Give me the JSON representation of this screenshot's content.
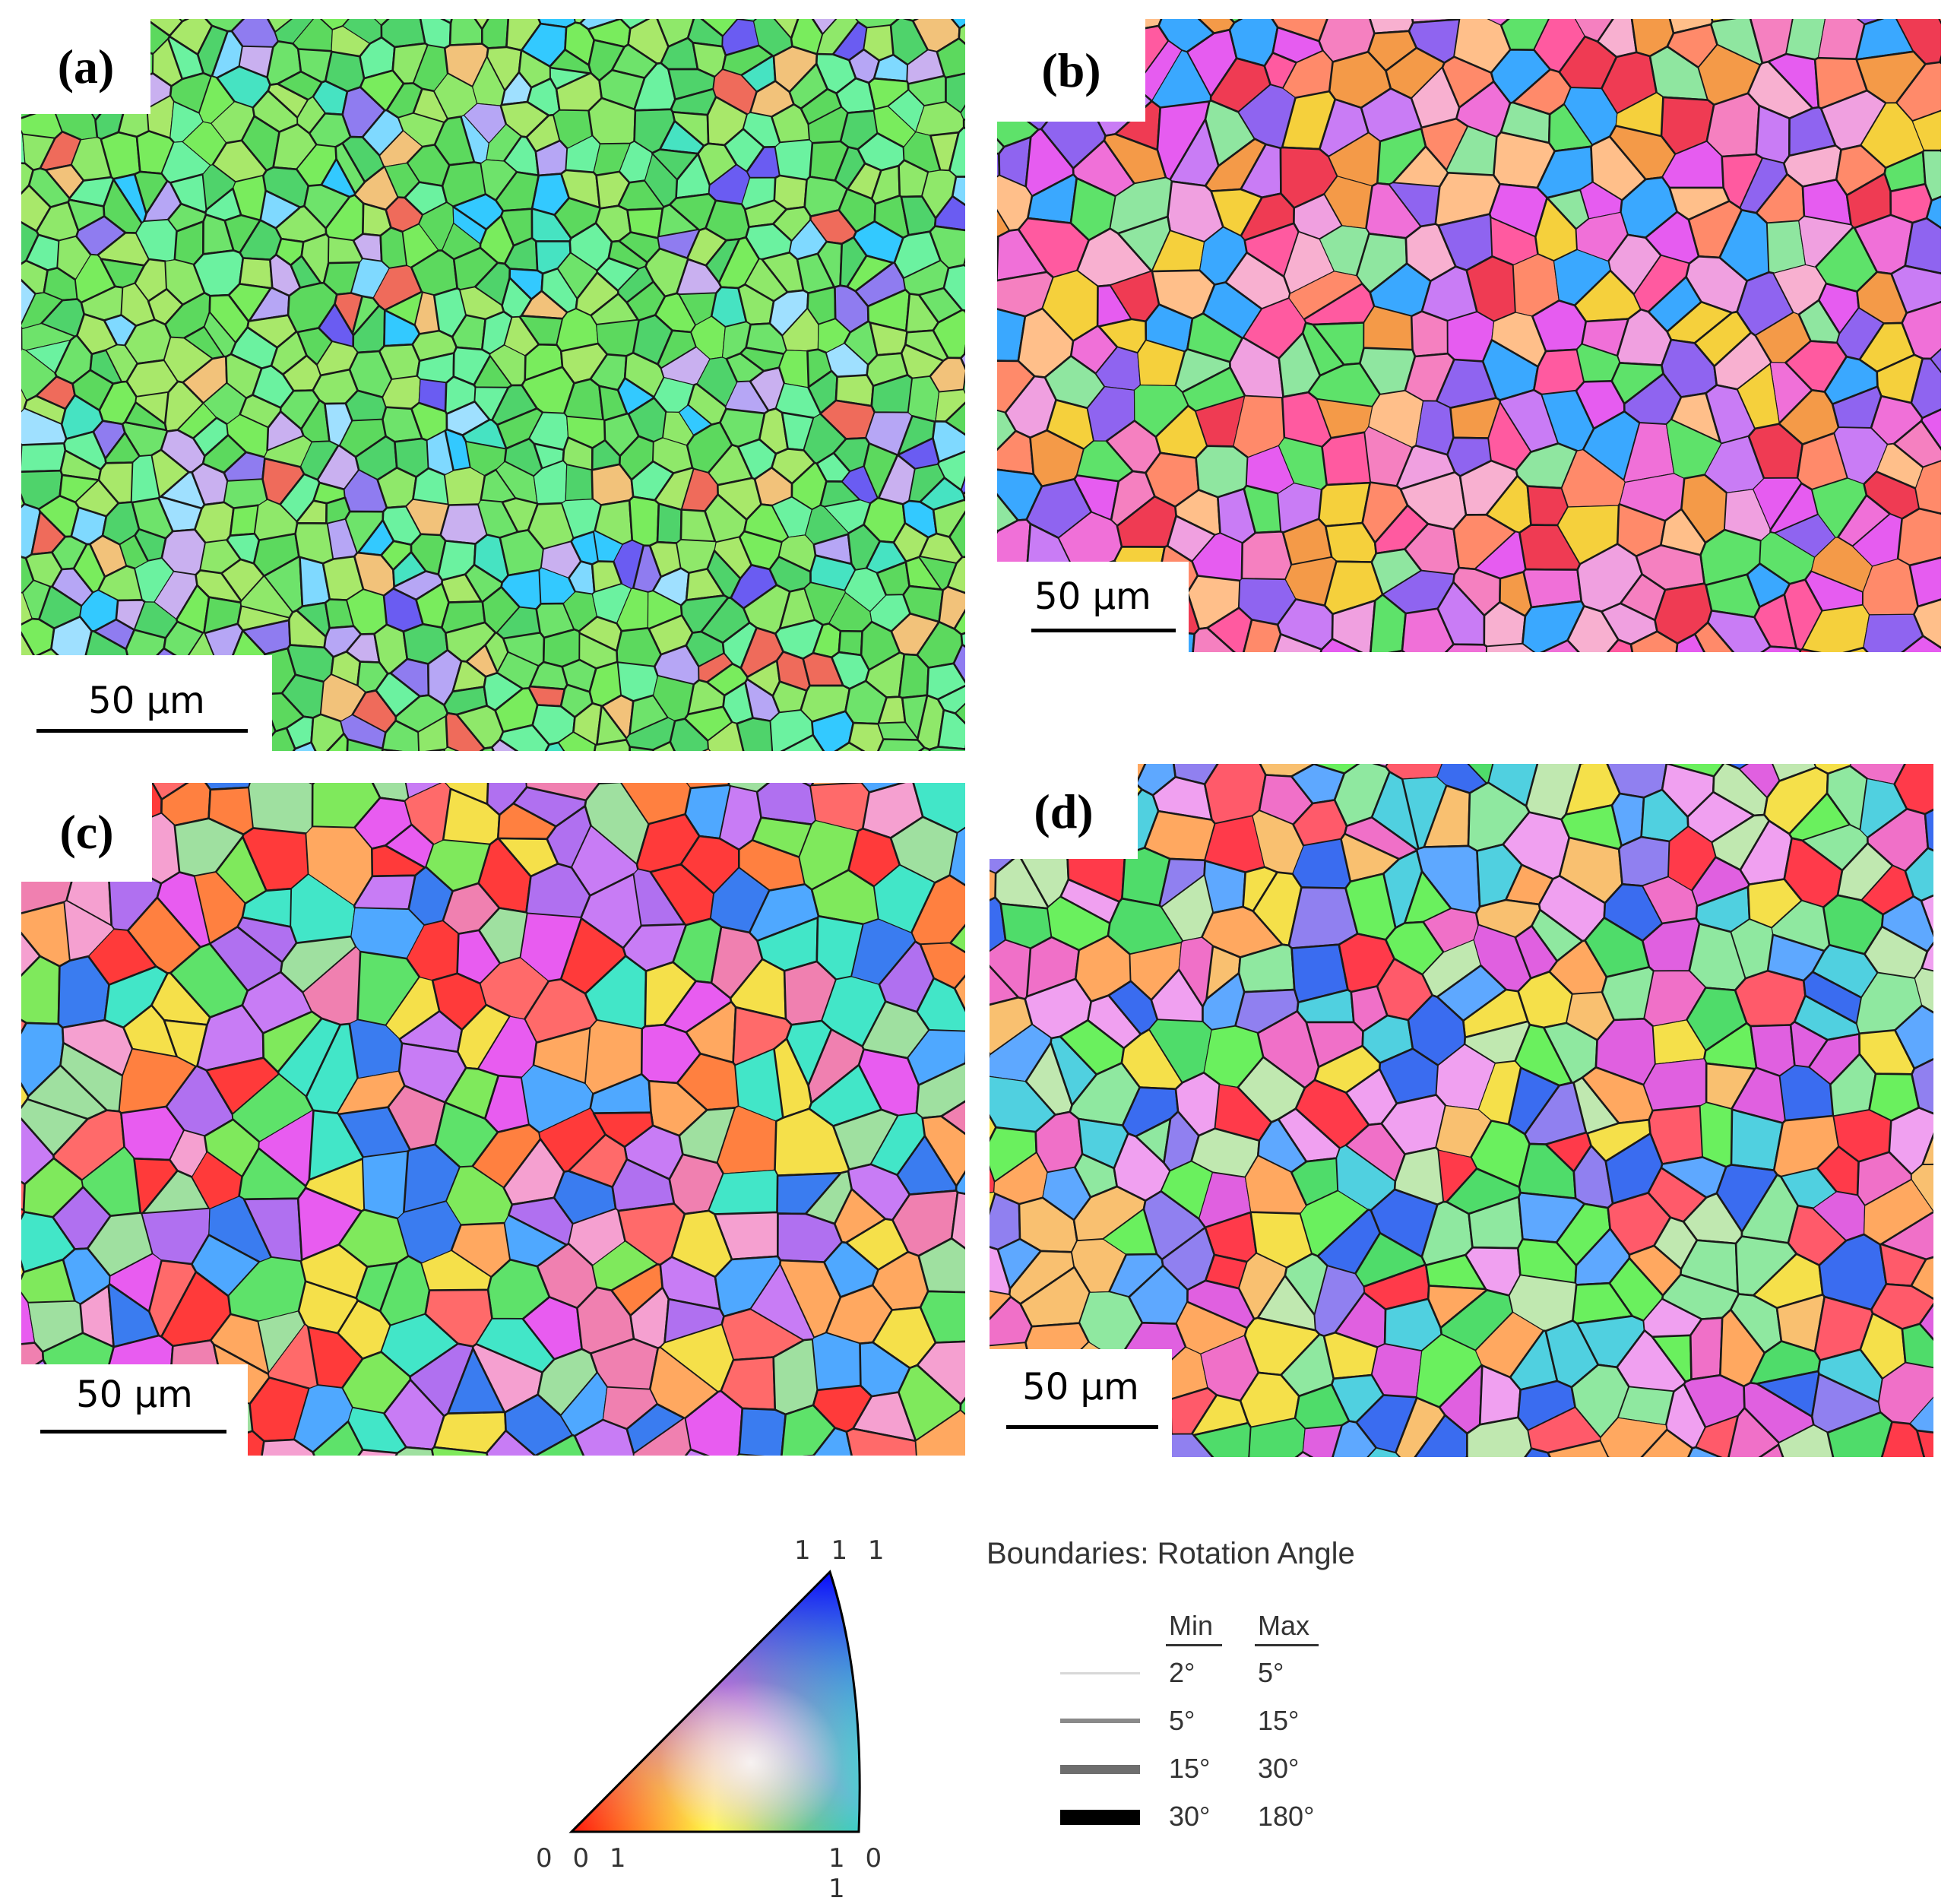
{
  "panels": [
    {
      "id": "a",
      "label": "(a)",
      "scale_text": "50 µm",
      "palette": [
        "#6ee36b",
        "#5cd95e",
        "#8fe86a",
        "#6bf2a0",
        "#a8e86a",
        "#4fd36b",
        "#79ec5d",
        "#46e3c2",
        "#7fd9ff",
        "#8f7cf0",
        "#6a5cf2",
        "#b6a6f5",
        "#c9b0f0",
        "#33c9ff",
        "#ef6b5b",
        "#f2c27a",
        "#9fe0ff"
      ]
    },
    {
      "id": "b",
      "label": "(b)",
      "scale_text": "50 µm",
      "palette": [
        "#f070d8",
        "#f580c0",
        "#ff5aa0",
        "#ef3b53",
        "#f49a48",
        "#f5d03c",
        "#8f64f0",
        "#3aa8ff",
        "#5ee26a",
        "#f0a0e0",
        "#ff8a6a",
        "#e65cf0",
        "#ffbf8a",
        "#f8b0d0",
        "#8fe6a0",
        "#c97cf5"
      ]
    },
    {
      "id": "c",
      "label": "(c)",
      "scale_text": "50 µm",
      "palette": [
        "#ff6a6a",
        "#f080b0",
        "#e85cf0",
        "#ff3a3a",
        "#5ee26a",
        "#7fe95c",
        "#3a7cf0",
        "#4fa8ff",
        "#f5e04a",
        "#ffa860",
        "#b070f0",
        "#42e6c8",
        "#f5a0d0",
        "#9fe0a0",
        "#ff8040",
        "#c87cf5"
      ]
    },
    {
      "id": "d",
      "label": "(d)",
      "scale_text": "50 µm",
      "palette": [
        "#ff5a6a",
        "#f070c8",
        "#e060e0",
        "#3a6cf0",
        "#5ea8ff",
        "#4fdc6a",
        "#6af05e",
        "#f5e04a",
        "#ffa860",
        "#9080f0",
        "#50d0e0",
        "#c0e8b0",
        "#ff3a4a",
        "#f0a0f0",
        "#f9c070",
        "#8fe8a0"
      ]
    }
  ],
  "ipf_key": {
    "corner_001": "0 0 1",
    "corner_101": "1 0 1",
    "corner_111": "1 1 1"
  },
  "legend": {
    "title": "Boundaries: Rotation Angle",
    "min_header": "Min",
    "max_header": "Max",
    "rows": [
      {
        "min": "2°",
        "max": "5°",
        "color": "#d8d8d8"
      },
      {
        "min": "5°",
        "max": "15°",
        "color": "#8a8a8a"
      },
      {
        "min": "15°",
        "max": "30°",
        "color": "#6e6e6e"
      },
      {
        "min": "30°",
        "max": "180°",
        "color": "#000000"
      }
    ]
  }
}
